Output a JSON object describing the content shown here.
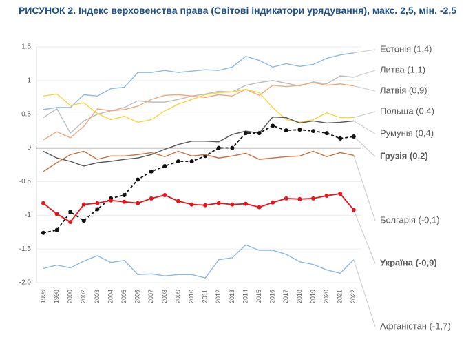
{
  "chart_data": {
    "type": "line",
    "title": "РИСУНОК 2. Індекс верховенства права (Світові індикатори урядування), макс. 2,5, мін. -2,5",
    "categories": [
      "1996",
      "1998",
      "2000",
      "2002",
      "2003",
      "2004",
      "2005",
      "2006",
      "2007",
      "2008",
      "2009",
      "2010",
      "2011",
      "2012",
      "2013",
      "2014",
      "2015",
      "2016",
      "2017",
      "2018",
      "2019",
      "2020",
      "2021",
      "2022"
    ],
    "ylim": [
      -2,
      1.5
    ],
    "yticks": [
      {
        "value": -2,
        "label": "-2.0"
      },
      -1.5,
      -1,
      -0.5,
      0,
      0.5,
      1,
      1.5
    ],
    "grid": true,
    "series": [
      {
        "name": "Естонія (1,4)",
        "color": "#8db8e3",
        "values": [
          0.57,
          0.6,
          0.6,
          0.79,
          0.77,
          0.88,
          0.9,
          1.12,
          1.12,
          1.15,
          1.12,
          1.14,
          1.16,
          1.15,
          1.2,
          1.36,
          1.3,
          1.2,
          1.25,
          1.21,
          1.24,
          1.33,
          1.38,
          1.41
        ]
      },
      {
        "name": "Литва (1,1)",
        "color": "#bdbdbd",
        "values": [
          0.45,
          0.58,
          0.22,
          0.4,
          0.5,
          0.55,
          0.6,
          0.7,
          0.68,
          0.68,
          0.72,
          0.77,
          0.8,
          0.84,
          0.83,
          0.93,
          0.97,
          1.0,
          0.96,
          0.92,
          0.98,
          0.95,
          1.07,
          1.05
        ]
      },
      {
        "name": "Латвія (0,9)",
        "color": "#f0a77a",
        "values": [
          0.12,
          0.24,
          0.15,
          0.32,
          0.58,
          0.55,
          0.57,
          0.62,
          0.72,
          0.78,
          0.79,
          0.77,
          0.75,
          0.79,
          0.77,
          0.87,
          0.78,
          0.93,
          0.91,
          0.93,
          0.97,
          0.93,
          0.95,
          0.92
        ]
      },
      {
        "name": "Польща (0,4)",
        "color": "#f7d443",
        "values": [
          0.77,
          0.8,
          0.63,
          0.67,
          0.51,
          0.42,
          0.47,
          0.38,
          0.42,
          0.55,
          0.65,
          0.72,
          0.79,
          0.82,
          0.83,
          0.87,
          0.82,
          0.6,
          0.42,
          0.38,
          0.42,
          0.52,
          0.45,
          0.45
        ]
      },
      {
        "name": "Румунія (0,4)",
        "color": "#555555",
        "values": [
          -0.05,
          -0.15,
          -0.2,
          -0.27,
          -0.22,
          -0.2,
          -0.17,
          -0.15,
          -0.1,
          -0.02,
          0.05,
          0.1,
          0.1,
          0.09,
          0.2,
          0.25,
          0.22,
          0.46,
          0.45,
          0.37,
          0.4,
          0.37,
          0.38,
          0.4
        ]
      },
      {
        "name": "Грузія (0,2)",
        "color": "#111111",
        "dashed": true,
        "markers": true,
        "bold": true,
        "values": [
          -1.26,
          -1.22,
          -0.95,
          -1.08,
          -0.91,
          -0.75,
          -0.7,
          -0.47,
          -0.35,
          -0.27,
          -0.2,
          -0.2,
          -0.12,
          0.0,
          0.0,
          0.22,
          0.22,
          0.33,
          0.26,
          0.27,
          0.25,
          0.22,
          0.14,
          0.17
        ]
      },
      {
        "name": "Болгарія (-0,1)",
        "color": "#c8703f",
        "values": [
          -0.35,
          -0.22,
          -0.1,
          -0.05,
          -0.17,
          -0.12,
          -0.12,
          -0.1,
          -0.07,
          -0.13,
          -0.05,
          -0.12,
          -0.1,
          -0.15,
          -0.12,
          -0.08,
          -0.17,
          -0.15,
          -0.13,
          -0.12,
          -0.05,
          -0.13,
          -0.07,
          -0.11
        ]
      },
      {
        "name": "Україна (-0,9)",
        "color": "#e8141b",
        "markers": true,
        "bold": true,
        "values": [
          -0.82,
          -0.98,
          -1.1,
          -0.84,
          -0.82,
          -0.78,
          -0.8,
          -0.82,
          -0.75,
          -0.7,
          -0.79,
          -0.84,
          -0.85,
          -0.82,
          -0.84,
          -0.83,
          -0.88,
          -0.81,
          -0.75,
          -0.76,
          -0.75,
          -0.71,
          -0.68,
          -0.92
        ]
      },
      {
        "name": "Афганістан (-1,7)",
        "color": "#8db8e3",
        "values": [
          -1.79,
          -1.74,
          -1.78,
          -1.68,
          -1.6,
          -1.7,
          -1.67,
          -1.88,
          -1.87,
          -1.9,
          -1.88,
          -1.88,
          -1.93,
          -1.66,
          -1.63,
          -1.44,
          -1.52,
          -1.52,
          -1.58,
          -1.69,
          -1.73,
          -1.81,
          -1.86,
          -1.66
        ]
      }
    ]
  }
}
